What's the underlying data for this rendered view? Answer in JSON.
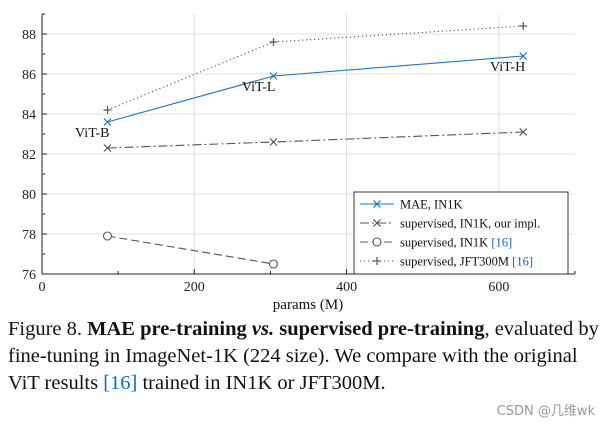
{
  "chart_data": {
    "type": "line",
    "xlabel": "params (M)",
    "ylabel": "",
    "xlim": [
      0,
      700
    ],
    "ylim": [
      76,
      89
    ],
    "x_ticks": [
      0,
      200,
      400,
      600
    ],
    "y_ticks": [
      76,
      78,
      80,
      82,
      84,
      86,
      88
    ],
    "grid": true,
    "legend_position": "lower-right",
    "series": [
      {
        "name": "MAE, IN1K",
        "style": "solid",
        "marker": "x",
        "color": "#1f77b4",
        "x": [
          86,
          304,
          632
        ],
        "y": [
          83.6,
          85.9,
          86.9
        ]
      },
      {
        "name": "supervised, IN1K, our impl.",
        "style": "dashdot",
        "marker": "x",
        "color": "#555555",
        "x": [
          86,
          304,
          632
        ],
        "y": [
          82.3,
          82.6,
          83.1
        ]
      },
      {
        "name": "supervised, IN1K",
        "ref": "[16]",
        "style": "dashed",
        "marker": "o",
        "color": "#555555",
        "x": [
          86,
          304
        ],
        "y": [
          77.9,
          76.5
        ]
      },
      {
        "name": "supervised, JFT300M",
        "ref": "[16]",
        "style": "dotted",
        "marker": "+",
        "color": "#555555",
        "x": [
          86,
          304,
          632
        ],
        "y": [
          84.2,
          87.6,
          88.4
        ]
      }
    ],
    "annotations": [
      {
        "text": "ViT-B",
        "x": 86,
        "y": 83.6,
        "anchor": "below-left"
      },
      {
        "text": "ViT-L",
        "x": 304,
        "y": 85.9,
        "anchor": "below-left"
      },
      {
        "text": "ViT-H",
        "x": 632,
        "y": 86.9,
        "anchor": "below-left"
      }
    ]
  },
  "caption": {
    "label": "Figure 8.",
    "title_part1": "MAE pre-training",
    "title_vs": "vs.",
    "title_part2": "supervised pre-training",
    "text_1": ", evaluated by fine-tuning in ImageNet-1K (224 size). We compare with the original ViT results ",
    "citation": "[16]",
    "text_2": " trained in IN1K or JFT300M."
  },
  "watermark": "CSDN @几维wk"
}
